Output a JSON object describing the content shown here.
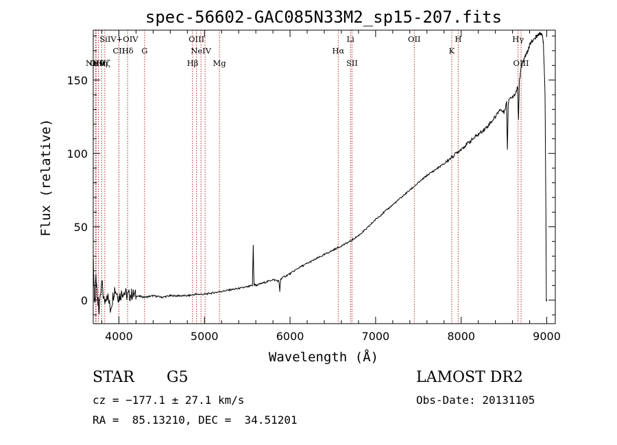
{
  "chart_data": {
    "type": "line",
    "title": "spec-56602-GAC085N33M2_sp15-207.fits",
    "xlabel": "Wavelength (Å)",
    "ylabel": "Flux (relative)",
    "xlim": [
      3700,
      9100
    ],
    "ylim": [
      -16,
      184
    ],
    "xticks": [
      4000,
      5000,
      6000,
      7000,
      8000,
      9000
    ],
    "yticks": [
      0,
      50,
      100,
      150
    ],
    "grid": false,
    "series": [
      {
        "x": [
          3700,
          3710,
          3720,
          3730,
          3750,
          3770,
          3800,
          3830,
          3860,
          3900,
          3950,
          4000,
          4050,
          4100,
          4150,
          4200,
          4300,
          4400,
          4500,
          4600,
          4700,
          4800,
          4900,
          5000,
          5100,
          5200,
          5300,
          5400,
          5500,
          5560,
          5570,
          5575,
          5580,
          5590,
          5600,
          5700,
          5800,
          5870,
          5880,
          5890,
          5900,
          6000,
          6100,
          6200,
          6300,
          6400,
          6500,
          6600,
          6700,
          6800,
          6900,
          7000,
          7100,
          7200,
          7300,
          7400,
          7500,
          7600,
          7700,
          7800,
          7900,
          8000,
          8100,
          8200,
          8300,
          8400,
          8450,
          8500,
          8530,
          8540,
          8550,
          8560,
          8600,
          8640,
          8660,
          8670,
          8680,
          8700,
          8720,
          8740,
          8760,
          8780,
          8800,
          8820,
          8850,
          8880,
          8900,
          8920,
          8940,
          8950,
          8960,
          8970,
          8980,
          8990,
          8995,
          9000
        ],
        "values": [
          28,
          10,
          -5,
          15,
          3,
          -8,
          12,
          -2,
          5,
          -6,
          8,
          2,
          6,
          3,
          4,
          3,
          2,
          3,
          2,
          3,
          3,
          3,
          4,
          4,
          5,
          6,
          7,
          8,
          9,
          10,
          38,
          20,
          10,
          11,
          10,
          12,
          14,
          13,
          6,
          14,
          15,
          18,
          22,
          25,
          28,
          31,
          34,
          37,
          40,
          44,
          49,
          55,
          60,
          65,
          70,
          75,
          80,
          85,
          89,
          93,
          98,
          103,
          108,
          113,
          118,
          125,
          130,
          128,
          135,
          102,
          134,
          138,
          138,
          142,
          145,
          122,
          149,
          158,
          162,
          165,
          168,
          170,
          174,
          176,
          178,
          180,
          181,
          182,
          181,
          180,
          175,
          160,
          140,
          60,
          0,
          0
        ],
        "style": "step"
      }
    ],
    "lines": [
      {
        "x": 3727,
        "label": "Ne V",
        "row": 3
      },
      {
        "x": 3734,
        "label": "OII",
        "row": 3
      },
      {
        "x": 3760,
        "label": "Hθ",
        "row": 3
      },
      {
        "x": 3799,
        "label": "Hη",
        "row": 3
      },
      {
        "x": 3835,
        "label": "Hζ",
        "row": 3
      },
      {
        "x": 4000,
        "label": "SiIV+OIV",
        "row": 1
      },
      {
        "x": 4000,
        "label": "CII",
        "row": 2
      },
      {
        "x": 4102,
        "label": "Hδ",
        "row": 2
      },
      {
        "x": 4300,
        "label": "G",
        "row": 2
      },
      {
        "x": 4861,
        "label": "Hβ",
        "row": 3
      },
      {
        "x": 4907,
        "label": "OIII",
        "row": 1
      },
      {
        "x": 4959,
        "label": "NeIV",
        "row": 2
      },
      {
        "x": 5007,
        "label": "",
        "row": 1
      },
      {
        "x": 5175,
        "label": "Mg",
        "row": 3
      },
      {
        "x": 6563,
        "label": "Hα",
        "row": 2
      },
      {
        "x": 6707,
        "label": "Li",
        "row": 1
      },
      {
        "x": 6724,
        "label": "SII",
        "row": 3
      },
      {
        "x": 7452,
        "label": "OII",
        "row": 1
      },
      {
        "x": 7890,
        "label": "K",
        "row": 2
      },
      {
        "x": 7965,
        "label": "H",
        "row": 1
      },
      {
        "x": 8665,
        "label": "Hγ",
        "row": 1
      },
      {
        "x": 8700,
        "label": "OIII",
        "row": 3
      }
    ]
  },
  "info": {
    "class": "STAR",
    "subclass": "G5",
    "survey": "LAMOST DR2",
    "cz": "cz = −177.1 ± 27.1 km/s",
    "obsdate": "Obs-Date: 20131105",
    "radec": "RA =  85.13210, DEC =  34.51201"
  },
  "colors": {
    "spectrum": "#000000",
    "line_marker": "#b22222",
    "axes": "#000000",
    "background": "#ffffff"
  }
}
